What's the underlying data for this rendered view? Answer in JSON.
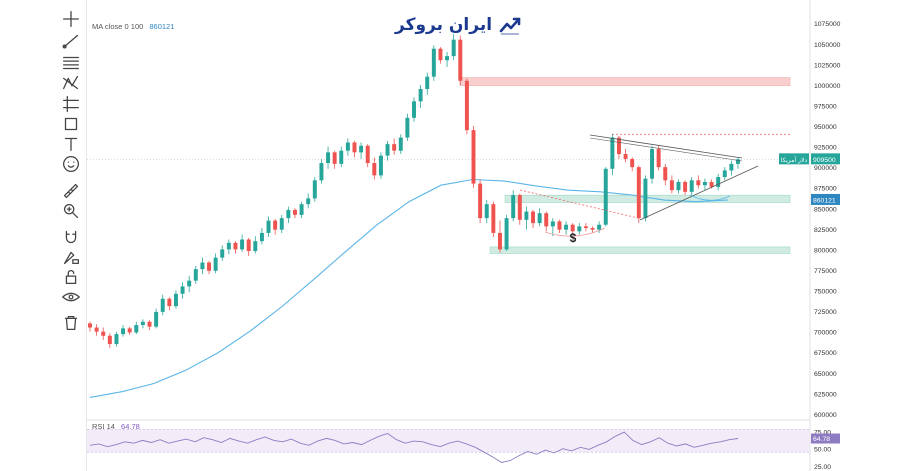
{
  "brand": {
    "logo_text": "ایران بروکر"
  },
  "indicators": {
    "ma_label": "MA close 0 100",
    "ma_value": "860121",
    "rsi_label": "RSI 14",
    "rsi_value": "64.78"
  },
  "annotations": {
    "price_tag": "909500",
    "price_tag_prefix": "دلار آمریکا",
    "ma_tag": "860121",
    "dollar_sign": "$"
  },
  "toolbar_icons": [
    "crosshair-icon",
    "trendline-icon",
    "fib-icon",
    "pattern-icon",
    "projection-icon",
    "rectangle-icon",
    "text-icon",
    "emoji-icon",
    "ruler-icon",
    "zoom-icon",
    "magnet-icon",
    "lock-drawing-icon",
    "lock-icon",
    "eye-icon",
    "trash-icon"
  ],
  "colors": {
    "up": "#26a69a",
    "down": "#ef5350",
    "ma": "#5ab5e8",
    "rsi": "#8e7cc3",
    "resistance": "#f7c6c6",
    "support": "#c8e9dd"
  },
  "chart_data": [
    {
      "type": "candlestick",
      "title": "",
      "ylim": [
        595000,
        1085000
      ],
      "y_ticks": [
        "1075000",
        "1050000",
        "1025000",
        "1000000",
        "975000",
        "950000",
        "925000",
        "900000",
        "875000",
        "850000",
        "825000",
        "800000",
        "775000",
        "750000",
        "725000",
        "700000",
        "675000",
        "650000",
        "625000",
        "600000"
      ],
      "ohlc": [
        [
          710000,
          712000,
          700000,
          705000
        ],
        [
          705000,
          709000,
          695000,
          700000
        ],
        [
          700000,
          705000,
          690000,
          695000
        ],
        [
          695000,
          698000,
          680000,
          685000
        ],
        [
          685000,
          700000,
          682000,
          697000
        ],
        [
          697000,
          708000,
          694000,
          704000
        ],
        [
          704000,
          706000,
          696000,
          699000
        ],
        [
          699000,
          712000,
          697000,
          708000
        ],
        [
          708000,
          715000,
          704000,
          712000
        ],
        [
          712000,
          714000,
          702000,
          706000
        ],
        [
          706000,
          728000,
          704000,
          724000
        ],
        [
          724000,
          745000,
          720000,
          740000
        ],
        [
          740000,
          742000,
          726000,
          731000
        ],
        [
          731000,
          750000,
          728000,
          746000
        ],
        [
          746000,
          760000,
          740000,
          755000
        ],
        [
          755000,
          768000,
          748000,
          762000
        ],
        [
          762000,
          780000,
          758000,
          776000
        ],
        [
          776000,
          790000,
          770000,
          784000
        ],
        [
          784000,
          786000,
          770000,
          774000
        ],
        [
          774000,
          795000,
          771000,
          790000
        ],
        [
          790000,
          805000,
          786000,
          800000
        ],
        [
          800000,
          812000,
          794000,
          808000
        ],
        [
          808000,
          810000,
          795000,
          800000
        ],
        [
          800000,
          818000,
          797000,
          812000
        ],
        [
          812000,
          814000,
          792000,
          798000
        ],
        [
          798000,
          816000,
          795000,
          810000
        ],
        [
          810000,
          826000,
          806000,
          820000
        ],
        [
          820000,
          840000,
          815000,
          835000
        ],
        [
          835000,
          837000,
          818000,
          824000
        ],
        [
          824000,
          842000,
          820000,
          838000
        ],
        [
          838000,
          852000,
          832000,
          848000
        ],
        [
          848000,
          850000,
          838000,
          842000
        ],
        [
          842000,
          858000,
          838000,
          855000
        ],
        [
          855000,
          868000,
          850000,
          862000
        ],
        [
          862000,
          888000,
          858000,
          884000
        ],
        [
          884000,
          910000,
          880000,
          905000
        ],
        [
          905000,
          925000,
          898000,
          918000
        ],
        [
          918000,
          920000,
          898000,
          904000
        ],
        [
          904000,
          925000,
          900000,
          920000
        ],
        [
          920000,
          935000,
          914000,
          930000
        ],
        [
          930000,
          932000,
          912000,
          918000
        ],
        [
          918000,
          930000,
          910000,
          926000
        ],
        [
          926000,
          928000,
          900000,
          905000
        ],
        [
          905000,
          912000,
          885000,
          890000
        ],
        [
          890000,
          918000,
          886000,
          914000
        ],
        [
          914000,
          932000,
          908000,
          928000
        ],
        [
          928000,
          935000,
          915000,
          920000
        ],
        [
          920000,
          940000,
          916000,
          936000
        ],
        [
          936000,
          965000,
          932000,
          960000
        ],
        [
          960000,
          985000,
          955000,
          980000
        ],
        [
          980000,
          1000000,
          972000,
          995000
        ],
        [
          995000,
          1015000,
          988000,
          1010000
        ],
        [
          1010000,
          1048000,
          1005000,
          1044000
        ],
        [
          1044000,
          1046000,
          1026000,
          1030000
        ],
        [
          1030000,
          1040000,
          1022000,
          1035000
        ],
        [
          1035000,
          1062000,
          1030000,
          1055000
        ],
        [
          1055000,
          1060000,
          1000000,
          1005000
        ],
        [
          1005000,
          1008000,
          940000,
          945000
        ],
        [
          945000,
          950000,
          875000,
          880000
        ],
        [
          880000,
          885000,
          832000,
          838000
        ],
        [
          838000,
          860000,
          832000,
          855000
        ],
        [
          855000,
          858000,
          815000,
          820000
        ],
        [
          820000,
          835000,
          796000,
          800000
        ],
        [
          800000,
          842000,
          798000,
          838000
        ],
        [
          838000,
          872000,
          834000,
          866000
        ],
        [
          866000,
          868000,
          830000,
          836000
        ],
        [
          836000,
          852000,
          824000,
          846000
        ],
        [
          846000,
          848000,
          826000,
          832000
        ],
        [
          832000,
          850000,
          828000,
          844000
        ],
        [
          844000,
          846000,
          822000,
          828000
        ],
        [
          828000,
          838000,
          816000,
          834000
        ],
        [
          834000,
          836000,
          820000,
          824000
        ],
        [
          824000,
          834000,
          818000,
          830000
        ],
        [
          830000,
          832000,
          818000,
          822000
        ],
        [
          822000,
          832000,
          818000,
          828000
        ],
        [
          828000,
          832000,
          822000,
          826000
        ],
        [
          826000,
          828000,
          820000,
          824000
        ],
        [
          824000,
          834000,
          820000,
          830000
        ],
        [
          830000,
          900000,
          828000,
          898000
        ],
        [
          898000,
          940000,
          890000,
          936000
        ],
        [
          936000,
          938000,
          910000,
          916000
        ],
        [
          916000,
          922000,
          906000,
          910000
        ],
        [
          910000,
          912000,
          895000,
          900000
        ],
        [
          900000,
          902000,
          832000,
          838000
        ],
        [
          838000,
          890000,
          834000,
          886000
        ],
        [
          886000,
          926000,
          880000,
          922000
        ],
        [
          922000,
          926000,
          896000,
          900000
        ],
        [
          900000,
          904000,
          878000,
          884000
        ],
        [
          884000,
          890000,
          868000,
          872000
        ],
        [
          872000,
          885000,
          868000,
          882000
        ],
        [
          882000,
          884000,
          866000,
          870000
        ],
        [
          870000,
          888000,
          866000,
          884000
        ],
        [
          884000,
          890000,
          874000,
          878000
        ],
        [
          878000,
          886000,
          872000,
          882000
        ],
        [
          882000,
          885000,
          874000,
          876000
        ],
        [
          876000,
          892000,
          872000,
          888000
        ],
        [
          888000,
          900000,
          884000,
          896000
        ],
        [
          896000,
          908000,
          890000,
          904000
        ],
        [
          904000,
          912000,
          898000,
          909500
        ]
      ],
      "moving_average": {
        "name": "MA close 0 100",
        "values": [
          620000,
          627000,
          637000,
          653000,
          674000,
          700000,
          730000,
          763000,
          797000,
          830000,
          858000,
          878000,
          885000,
          883000,
          877000,
          872000,
          870000,
          866000,
          860000,
          858000,
          860121
        ]
      },
      "zones": [
        {
          "kind": "resistance",
          "from": 999000,
          "to": 1009000
        },
        {
          "kind": "support",
          "from": 857000,
          "to": 866000
        },
        {
          "kind": "support",
          "from": 795000,
          "to": 803000
        }
      ],
      "dotted_level": 940000
    },
    {
      "type": "line",
      "title": "RSI 14",
      "ylim": [
        25,
        80
      ],
      "y_ticks": [
        "75.00",
        "50.00",
        "25.00"
      ],
      "band": [
        45,
        78
      ],
      "values": [
        55,
        57,
        53,
        56,
        60,
        58,
        62,
        59,
        63,
        58,
        61,
        64,
        60,
        66,
        63,
        59,
        65,
        61,
        58,
        63,
        67,
        62,
        60,
        64,
        58,
        55,
        61,
        65,
        62,
        57,
        59,
        56,
        62,
        68,
        72,
        63,
        58,
        61,
        60,
        56,
        53,
        58,
        61,
        57,
        52,
        45,
        38,
        30,
        33,
        40,
        46,
        42,
        48,
        44,
        50,
        47,
        52,
        49,
        55,
        60,
        68,
        74,
        62,
        56,
        60,
        66,
        58,
        54,
        57,
        52,
        55,
        58,
        60,
        63,
        64.78
      ]
    }
  ]
}
